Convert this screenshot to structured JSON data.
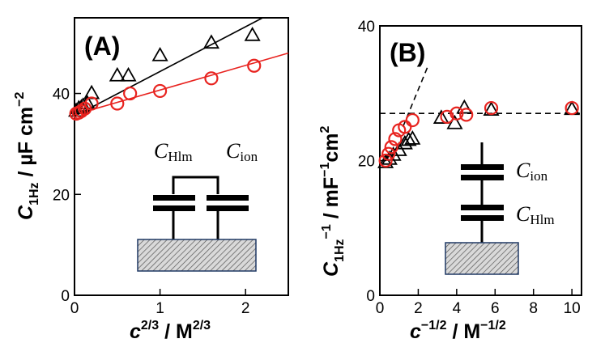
{
  "chart_data": [
    {
      "panel_label": "(A)",
      "type": "scatter",
      "xlim": [
        0,
        2.5
      ],
      "ylim": [
        0,
        55
      ],
      "xticks": [
        "0",
        "1",
        "2"
      ],
      "yticks": [
        "0",
        "20",
        "40"
      ],
      "xlabel": {
        "main": "c",
        "sup": "2/3",
        "unit": " / M",
        "unit_sup": "2/3"
      },
      "ylabel": {
        "main": "C",
        "sub": "1Hz",
        "unit": " / µF cm",
        "unit_sup": "−2"
      },
      "series": [
        {
          "name": "triangles",
          "marker": "triangle",
          "color": "#000000",
          "x": [
            0.02,
            0.05,
            0.08,
            0.1,
            0.15,
            0.2,
            0.5,
            0.63,
            1.0,
            1.6,
            2.08
          ],
          "y": [
            36.5,
            37.0,
            37.2,
            37.5,
            38.0,
            40.0,
            43.5,
            43.5,
            47.5,
            50.0,
            51.5
          ]
        },
        {
          "name": "circles",
          "marker": "circle",
          "color": "#e8231f",
          "x": [
            0.02,
            0.05,
            0.08,
            0.12,
            0.2,
            0.5,
            0.65,
            1.0,
            1.6,
            2.1
          ],
          "y": [
            36.0,
            36.2,
            36.5,
            37.0,
            38.0,
            38.0,
            40.0,
            40.5,
            43.0,
            45.5
          ]
        }
      ],
      "fit_lines": [
        {
          "color": "#000000",
          "x": [
            0,
            2.2
          ],
          "y": [
            35.5,
            55.0
          ]
        },
        {
          "color": "#e8231f",
          "x": [
            0,
            2.5
          ],
          "y": [
            35.8,
            48.0
          ]
        }
      ],
      "inset": {
        "label_left": "C",
        "label_left_sub": "Hlm",
        "label_right": "C",
        "label_right_sub": "ion",
        "topology": "parallel"
      }
    },
    {
      "panel_label": "(B)",
      "type": "scatter",
      "xlim": [
        0,
        10.5
      ],
      "ylim": [
        0,
        40
      ],
      "xticks": [
        "0",
        "2",
        "4",
        "6",
        "8",
        "10"
      ],
      "yticks": [
        "0",
        "20",
        "40"
      ],
      "xlabel": {
        "main": "c",
        "sup": "−1/2",
        "unit": " / M",
        "unit_sup": "−1/2"
      },
      "ylabel": {
        "main": "C",
        "sub": "1Hz",
        "sup": "−1",
        "unit": " / mF",
        "unit_sup": "−1",
        "unit2": "cm",
        "unit2_sup": "2"
      },
      "series": [
        {
          "name": "triangles",
          "marker": "triangle",
          "color": "#000000",
          "x": [
            0.3,
            0.5,
            0.7,
            1.0,
            1.3,
            1.5,
            1.7,
            3.2,
            3.9,
            4.4,
            5.8,
            10.0
          ],
          "y": [
            19.7,
            20.2,
            20.8,
            21.5,
            22.5,
            23.0,
            23.2,
            26.3,
            25.5,
            27.8,
            27.5,
            27.6
          ]
        },
        {
          "name": "circles",
          "marker": "circle",
          "color": "#e8231f",
          "x": [
            0.3,
            0.45,
            0.6,
            0.8,
            1.0,
            1.3,
            1.7,
            3.5,
            4.0,
            4.5,
            5.8,
            10.0
          ],
          "y": [
            20.0,
            21.0,
            22.0,
            23.2,
            24.5,
            25.0,
            26.0,
            26.5,
            27.0,
            26.8,
            27.8,
            27.8
          ]
        }
      ],
      "fit_lines": [
        {
          "color": "#000000",
          "dashed": true,
          "x": [
            1.2,
            2.5
          ],
          "y": [
            25.0,
            34.0
          ]
        },
        {
          "color": "#000000",
          "dashed": true,
          "x": [
            0,
            10.5
          ],
          "y": [
            27.0,
            27.0
          ]
        }
      ],
      "inset": {
        "label_top": "C",
        "label_top_sub": "ion",
        "label_bottom": "C",
        "label_bottom_sub": "Hlm",
        "topology": "series"
      }
    }
  ]
}
